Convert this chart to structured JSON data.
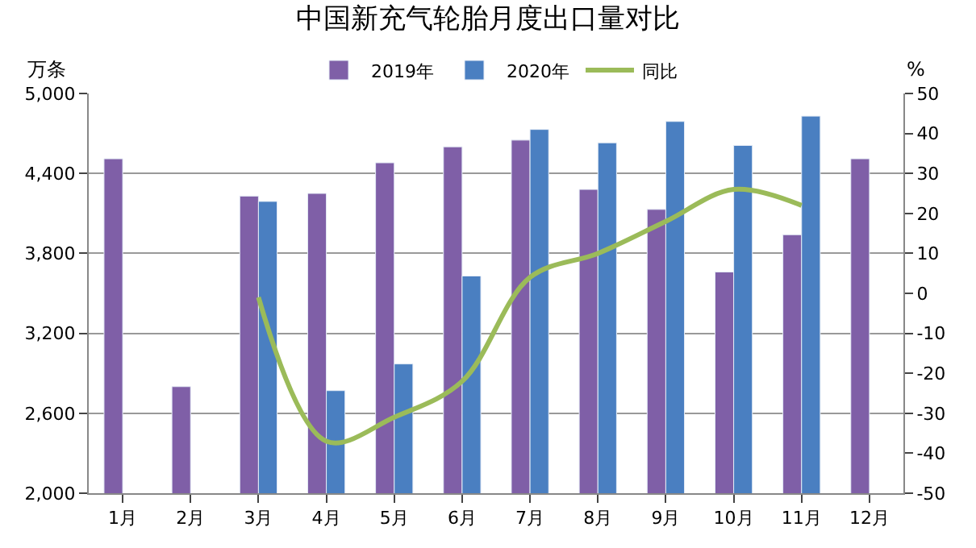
{
  "chart_data": {
    "type": "bar",
    "title": "中国新充气轮胎月度出口量对比",
    "ylabel": "万条",
    "y2label": "%",
    "categories": [
      "1月",
      "2月",
      "3月",
      "4月",
      "5月",
      "6月",
      "7月",
      "8月",
      "9月",
      "10月",
      "11月",
      "12月"
    ],
    "series": [
      {
        "name": "2019年",
        "color": "#7f5fa7",
        "values": [
          4510,
          2800,
          4230,
          4250,
          4480,
          4600,
          4650,
          4280,
          4130,
          3660,
          3940,
          4510
        ]
      },
      {
        "name": "2020年",
        "color": "#4a7fc1",
        "values": [
          null,
          null,
          4190,
          2770,
          2970,
          3630,
          4730,
          4630,
          4790,
          4610,
          4830,
          null
        ]
      },
      {
        "name": "同比",
        "type": "line",
        "axis": "y2",
        "color": "#9bbb59",
        "values": [
          null,
          null,
          -1,
          -37,
          -31,
          -22,
          4,
          10,
          18,
          26,
          22,
          null
        ]
      }
    ],
    "ylim": [
      2000,
      5000
    ],
    "yticks": [
      {
        "value": 2000,
        "label": "2,000"
      },
      {
        "value": 2600,
        "label": "2,600"
      },
      {
        "value": 3200,
        "label": "3,200"
      },
      {
        "value": 3800,
        "label": "3,800"
      },
      {
        "value": 4400,
        "label": "4,400"
      },
      {
        "value": 5000,
        "label": "5,000"
      }
    ],
    "y2lim": [
      -50,
      50
    ],
    "y2ticks": [
      -50,
      -40,
      -30,
      -20,
      -10,
      0,
      10,
      20,
      30,
      40,
      50
    ],
    "grid": "y",
    "legend": "top",
    "marker": "none"
  }
}
